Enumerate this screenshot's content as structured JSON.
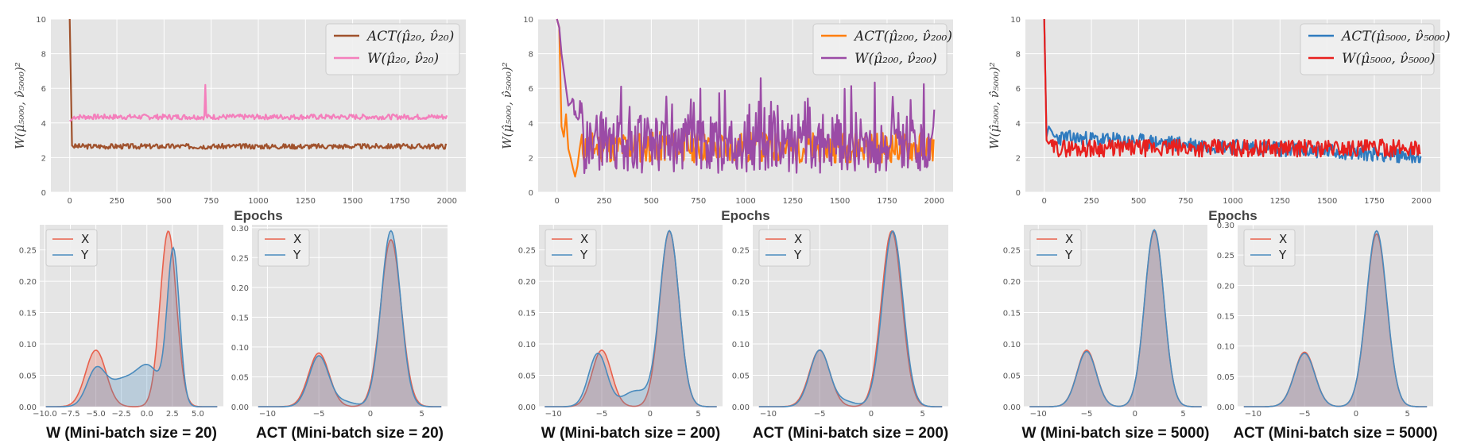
{
  "colors": {
    "bg": "#e5e5e5",
    "grid": "#ffffff"
  },
  "chart_data": [
    {
      "type": "line",
      "id": "line20",
      "title": "",
      "xlabel": "Epochs",
      "ylabel": "W(μ̂₅₀₀₀, ν̂₅₀₀₀)²",
      "xlim": [
        -100,
        2100
      ],
      "ylim": [
        0,
        10
      ],
      "xticks": [
        0,
        250,
        500,
        750,
        1000,
        1250,
        1500,
        1750,
        2000
      ],
      "yticks": [
        0,
        2,
        4,
        6,
        8,
        10
      ],
      "legend_position": "top-right",
      "series": [
        {
          "name": "ACT(μ̂₂₀, ν̂₂₀)",
          "color": "#a0522d",
          "start": [
            10,
            2.7
          ],
          "level": 2.65,
          "noise": 0.15,
          "seed": 3
        },
        {
          "name": "W(μ̂₂₀, ν̂₂₀)",
          "color": "#f47fbc",
          "start": [
            4.1,
            4.2
          ],
          "level": 4.35,
          "noise": 0.15,
          "seed": 7,
          "spike": [
            720,
            6.2
          ]
        }
      ]
    },
    {
      "type": "line",
      "id": "line200",
      "title": "",
      "xlabel": "Epochs",
      "ylabel": "W(μ̂₅₀₀₀, ν̂₅₀₀₀)²",
      "xlim": [
        -100,
        2100
      ],
      "ylim": [
        0,
        10
      ],
      "xticks": [
        0,
        250,
        500,
        750,
        1000,
        1250,
        1500,
        1750,
        2000
      ],
      "yticks": [
        0,
        2,
        4,
        6,
        8,
        10
      ],
      "legend_position": "top-right",
      "series": [
        {
          "name": "ACT(μ̂₂₀₀, ν̂₂₀₀)",
          "color": "#ff7f0e",
          "start": [
            10,
            9.5,
            3.8,
            3.2,
            4.5,
            2.5,
            2.0,
            1.4,
            0.9,
            1.5,
            2.5
          ],
          "level": 2.6,
          "noise": 0.9,
          "seed": 11
        },
        {
          "name": "W(μ̂₂₀₀, ν̂₂₀₀)",
          "color": "#9b4ba6",
          "start": [
            10,
            9.5,
            8,
            7,
            6,
            5
          ],
          "startX": 130,
          "level": 2.8,
          "noise": 1.7,
          "seed": 19
        }
      ]
    },
    {
      "type": "line",
      "id": "line5000",
      "title": "",
      "xlabel": "Epochs",
      "ylabel": "W(μ̂₅₀₀₀, ν̂₅₀₀₀)²",
      "xlim": [
        -100,
        2100
      ],
      "ylim": [
        0,
        10
      ],
      "xticks": [
        0,
        250,
        500,
        750,
        1000,
        1250,
        1500,
        1750,
        2000
      ],
      "yticks": [
        0,
        2,
        4,
        6,
        8,
        10
      ],
      "legend_position": "top-right",
      "series": [
        {
          "name": "ACT(μ̂₅₀₀₀, ν̂₅₀₀₀)",
          "color": "#2f7bbf",
          "start": [
            10,
            3.2,
            3.8
          ],
          "level": 3.2,
          "levelEnd": 2.1,
          "noise": 0.45,
          "seed": 23
        },
        {
          "name": "W(μ̂₅₀₀₀, ν̂₅₀₀₀)",
          "color": "#e8201e",
          "start": [
            10,
            3.0,
            2.8
          ],
          "level": 2.55,
          "noise": 0.5,
          "seed": 29
        }
      ]
    },
    {
      "type": "area",
      "id": "kde-w20",
      "title": "W (Mini-batch size  = 20)",
      "xlim": [
        -10.5,
        7.5
      ],
      "ylim": [
        0,
        0.29
      ],
      "xticks": [
        -10.0,
        -7.5,
        -5.0,
        -2.5,
        0.0,
        2.5,
        5.0
      ],
      "xtickLabels": [
        "−10.0",
        "−7.5",
        "−5.0",
        "−2.5",
        "0.0",
        "2.5",
        "5.0"
      ],
      "yticks": [
        0.0,
        0.05,
        0.1,
        0.15,
        0.2,
        0.25
      ],
      "ytickLabels": [
        "0.00",
        "0.05",
        "0.10",
        "0.15",
        "0.20",
        "0.25"
      ],
      "legend_position": "top-left",
      "series": [
        {
          "name": "X",
          "color": "#e8604c",
          "components": [
            [
              0.09,
              -5.0,
              1.0
            ],
            [
              0.28,
              2.1,
              0.8
            ]
          ]
        },
        {
          "name": "Y",
          "color": "#4a8bbd",
          "components": [
            [
              0.055,
              -5.0,
              0.9
            ],
            [
              0.04,
              -2.5,
              1.4
            ],
            [
              0.06,
              0.2,
              1.2
            ],
            [
              0.245,
              2.6,
              0.6
            ]
          ]
        }
      ]
    },
    {
      "type": "area",
      "id": "kde-act20",
      "title": "ACT (Mini-batch size  = 20)",
      "xlim": [
        -11.5,
        7.5
      ],
      "ylim": [
        0,
        0.305
      ],
      "xticks": [
        -10,
        -5,
        0,
        5
      ],
      "xtickLabels": [
        "−10",
        "−5",
        "0",
        "5"
      ],
      "yticks": [
        0.0,
        0.05,
        0.1,
        0.15,
        0.2,
        0.25,
        0.3
      ],
      "ytickLabels": [
        "0.00",
        "0.05",
        "0.10",
        "0.15",
        "0.20",
        "0.25",
        "0.30"
      ],
      "legend_position": "top-left",
      "series": [
        {
          "name": "X",
          "color": "#e8604c",
          "components": [
            [
              0.09,
              -5.0,
              1.0
            ],
            [
              0.28,
              2.0,
              1.0
            ]
          ]
        },
        {
          "name": "Y",
          "color": "#4a8bbd",
          "components": [
            [
              0.085,
              -5.0,
              0.95
            ],
            [
              0.008,
              -2.5,
              1.0
            ],
            [
              0.295,
              2.0,
              0.95
            ]
          ]
        }
      ]
    },
    {
      "type": "area",
      "id": "kde-w200",
      "title": "W (Mini-batch size  = 200)",
      "xlim": [
        -11.5,
        7.5
      ],
      "ylim": [
        0,
        0.29
      ],
      "xticks": [
        -10,
        -5,
        0,
        5
      ],
      "xtickLabels": [
        "−10",
        "−5",
        "0",
        "5"
      ],
      "yticks": [
        0.0,
        0.05,
        0.1,
        0.15,
        0.2,
        0.25
      ],
      "ytickLabels": [
        "0.00",
        "0.05",
        "0.10",
        "0.15",
        "0.20",
        "0.25"
      ],
      "legend_position": "top-left",
      "series": [
        {
          "name": "X",
          "color": "#e8604c",
          "components": [
            [
              0.09,
              -5.0,
              1.0
            ],
            [
              0.28,
              2.0,
              1.0
            ]
          ]
        },
        {
          "name": "Y",
          "color": "#4a8bbd",
          "components": [
            [
              0.085,
              -5.4,
              0.95
            ],
            [
              0.025,
              -1.5,
              1.3
            ],
            [
              0.28,
              2.0,
              1.0
            ]
          ]
        }
      ]
    },
    {
      "type": "area",
      "id": "kde-act200",
      "title": "ACT (Mini-batch size  = 200)",
      "xlim": [
        -11.5,
        7.5
      ],
      "ylim": [
        0,
        0.29
      ],
      "xticks": [
        -10,
        -5,
        0,
        5
      ],
      "xtickLabels": [
        "−10",
        "−5",
        "0",
        "5"
      ],
      "yticks": [
        0.0,
        0.05,
        0.1,
        0.15,
        0.2,
        0.25
      ],
      "ytickLabels": [
        "0.00",
        "0.05",
        "0.10",
        "0.15",
        "0.20",
        "0.25"
      ],
      "legend_position": "top-left",
      "series": [
        {
          "name": "X",
          "color": "#e8604c",
          "components": [
            [
              0.09,
              -5.0,
              1.0
            ],
            [
              0.28,
              2.0,
              1.0
            ]
          ]
        },
        {
          "name": "Y",
          "color": "#4a8bbd",
          "components": [
            [
              0.09,
              -5.0,
              0.95
            ],
            [
              0.008,
              -2.5,
              1.0
            ],
            [
              0.28,
              2.1,
              1.0
            ]
          ]
        }
      ]
    },
    {
      "type": "area",
      "id": "kde-w5000",
      "title": "W (Mini-batch size  = 5000)",
      "xlim": [
        -11.5,
        7.5
      ],
      "ylim": [
        0,
        0.29
      ],
      "xticks": [
        -10,
        -5,
        0,
        5
      ],
      "xtickLabels": [
        "−10",
        "−5",
        "0",
        "5"
      ],
      "yticks": [
        0.0,
        0.05,
        0.1,
        0.15,
        0.2,
        0.25
      ],
      "ytickLabels": [
        "0.00",
        "0.05",
        "0.10",
        "0.15",
        "0.20",
        "0.25"
      ],
      "legend_position": "top-left",
      "series": [
        {
          "name": "X",
          "color": "#e8604c",
          "components": [
            [
              0.09,
              -5.0,
              1.0
            ],
            [
              0.28,
              2.0,
              1.0
            ]
          ]
        },
        {
          "name": "Y",
          "color": "#4a8bbd",
          "components": [
            [
              0.088,
              -5.0,
              1.0
            ],
            [
              0.282,
              2.0,
              1.0
            ]
          ]
        }
      ]
    },
    {
      "type": "area",
      "id": "kde-act5000",
      "title": "ACT (Mini-batch size  = 5000)",
      "xlim": [
        -11.5,
        7.5
      ],
      "ylim": [
        0,
        0.3
      ],
      "xticks": [
        -10,
        -5,
        0,
        5
      ],
      "xtickLabels": [
        "−10",
        "−5",
        "0",
        "5"
      ],
      "yticks": [
        0.0,
        0.05,
        0.1,
        0.15,
        0.2,
        0.25,
        0.3
      ],
      "ytickLabels": [
        "0.00",
        "0.05",
        "0.10",
        "0.15",
        "0.20",
        "0.25",
        "0.30"
      ],
      "legend_position": "top-left",
      "series": [
        {
          "name": "X",
          "color": "#e8604c",
          "components": [
            [
              0.09,
              -5.0,
              1.0
            ],
            [
              0.285,
              2.0,
              1.0
            ]
          ]
        },
        {
          "name": "Y",
          "color": "#4a8bbd",
          "components": [
            [
              0.088,
              -5.0,
              1.0
            ],
            [
              0.29,
              2.0,
              1.0
            ]
          ]
        }
      ]
    }
  ]
}
